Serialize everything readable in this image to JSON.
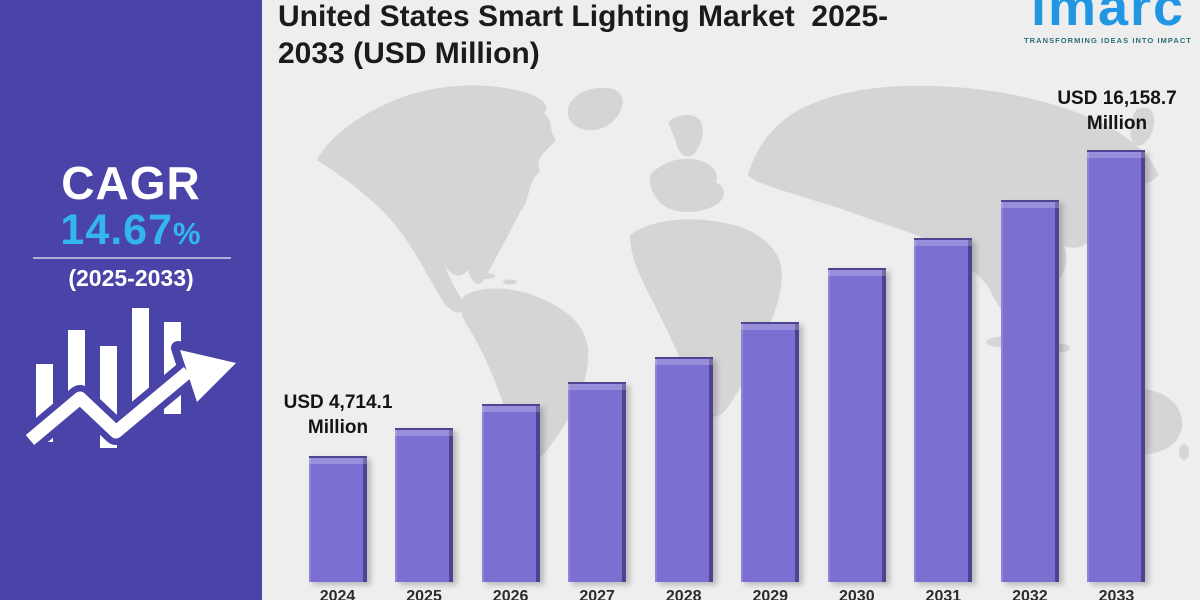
{
  "sidebar": {
    "cagr_label": "CAGR",
    "cagr_number": "14.67",
    "cagr_percent_sign": "%",
    "period": "(2025-2033)"
  },
  "header": {
    "title_line1": "United States Smart Lighting Market  2025-",
    "title_line2": "2033 (USD Million)"
  },
  "logo": {
    "name": "imarc",
    "tagline": "TRANSFORMING IDEAS INTO IMPACT"
  },
  "annotations": {
    "first_bar": {
      "line1": "USD 4,714.1",
      "line2": "Million"
    },
    "last_bar": {
      "line1": "USD 16,158.7",
      "line2": "Million"
    }
  },
  "colors": {
    "sidebar_bg": "#4a44a9",
    "cagr_accent_cyan": "#33b7ea",
    "bar_fill": "#7b70d2",
    "bar_edge_dark": "#4c4391",
    "chart_bg": "#efeeee",
    "map_gray": "#d6d5d5",
    "title_text": "#1b1b1b",
    "logo_blue": "#2196e3",
    "logo_tagline_teal": "#2a6e74"
  },
  "chart_data": {
    "type": "bar",
    "title": "United States Smart Lighting Market 2025-2033 (USD Million)",
    "unit": "USD Million",
    "categories": [
      "2024",
      "2025",
      "2026",
      "2027",
      "2028",
      "2029",
      "2030",
      "2031",
      "2032",
      "2033"
    ],
    "values": [
      4714.1,
      5760,
      6650,
      7470,
      8400,
      9710,
      11760,
      12880,
      14290,
      16158.7
    ],
    "value_labels": {
      "2024": "USD 4,714.1 Million",
      "2033": "USD 16,158.7 Million"
    },
    "cagr": "14.67%",
    "cagr_period": "2025-2033",
    "ylim": [
      0,
      16500
    ],
    "grid": false,
    "legend": false,
    "xaxis_labels_clipped": true,
    "note": "Only the 2024 and 2033 bars carry printed values; intermediate values are estimated from bar heights."
  }
}
